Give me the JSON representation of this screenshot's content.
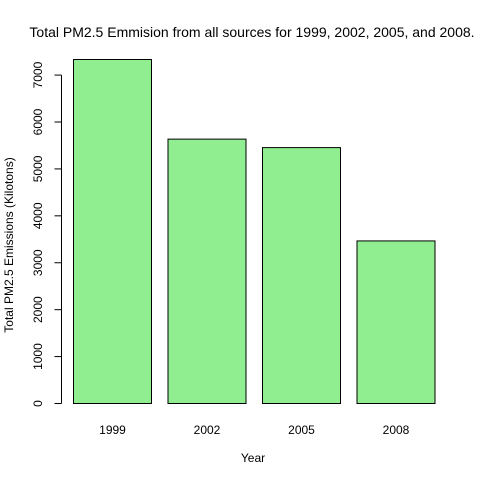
{
  "chart_data": {
    "type": "bar",
    "title": "Total PM2.5 Emmision from all sources for 1999, 2002, 2005, and 2008.",
    "xlabel": "Year",
    "ylabel": "Total PM2.5 Emissions (Kilotons)",
    "categories": [
      "1999",
      "2002",
      "2005",
      "2008"
    ],
    "values": [
      7332,
      5635,
      5454,
      3465
    ],
    "ylim": [
      0,
      7332
    ],
    "yticks": [
      0,
      1000,
      2000,
      3000,
      4000,
      5000,
      6000,
      7000
    ],
    "bar_color": "#90EE90",
    "bar_border_color": "#000000",
    "grid": false,
    "legend": "none"
  }
}
